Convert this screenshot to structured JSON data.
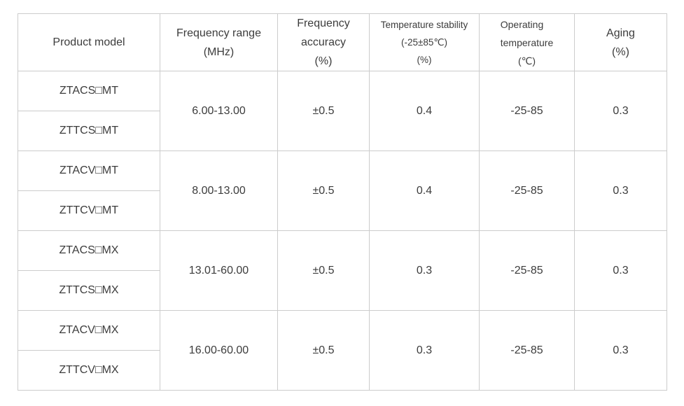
{
  "table": {
    "colors": {
      "border": "#cccccc",
      "text": "#3c3c3c",
      "background": "#ffffff"
    },
    "stray_mark": ".",
    "header": {
      "product_model": {
        "lines": [
          "Product model"
        ]
      },
      "frequency_range": {
        "lines": [
          "Frequency range",
          "(MHz)"
        ]
      },
      "frequency_accuracy": {
        "lines": [
          "Frequency",
          "accuracy",
          "(%)"
        ]
      },
      "temperature_stability": {
        "lines": [
          "Temperature stability",
          "(-25±85℃)",
          "(%)"
        ]
      },
      "operating_temperature": {
        "lines": [
          "Operating",
          "temperature",
          "(℃)"
        ]
      },
      "aging": {
        "lines": [
          "Aging",
          "(%)"
        ]
      }
    },
    "groups": [
      {
        "models": [
          "ZTACS□MT",
          "ZTTCS□MT"
        ],
        "frequency_range_mhz": "6.00-13.00",
        "frequency_accuracy_pct": "±0.5",
        "temperature_stability_pct": "0.4",
        "operating_temperature_c": "-25-85",
        "aging_pct": "0.3"
      },
      {
        "models": [
          "ZTACV□MT",
          "ZTTCV□MT"
        ],
        "frequency_range_mhz": "8.00-13.00",
        "frequency_accuracy_pct": "±0.5",
        "temperature_stability_pct": "0.4",
        "operating_temperature_c": "-25-85",
        "aging_pct": "0.3"
      },
      {
        "models": [
          "ZTACS□MX",
          "ZTTCS□MX"
        ],
        "frequency_range_mhz": "13.01-60.00",
        "frequency_accuracy_pct": "±0.5",
        "temperature_stability_pct": "0.3",
        "operating_temperature_c": "-25-85",
        "aging_pct": "0.3"
      },
      {
        "models": [
          "ZTACV□MX",
          "ZTTCV□MX"
        ],
        "frequency_range_mhz": "16.00-60.00",
        "frequency_accuracy_pct": "±0.5",
        "temperature_stability_pct": "0.3",
        "operating_temperature_c": "-25-85",
        "aging_pct": "0.3"
      }
    ]
  }
}
